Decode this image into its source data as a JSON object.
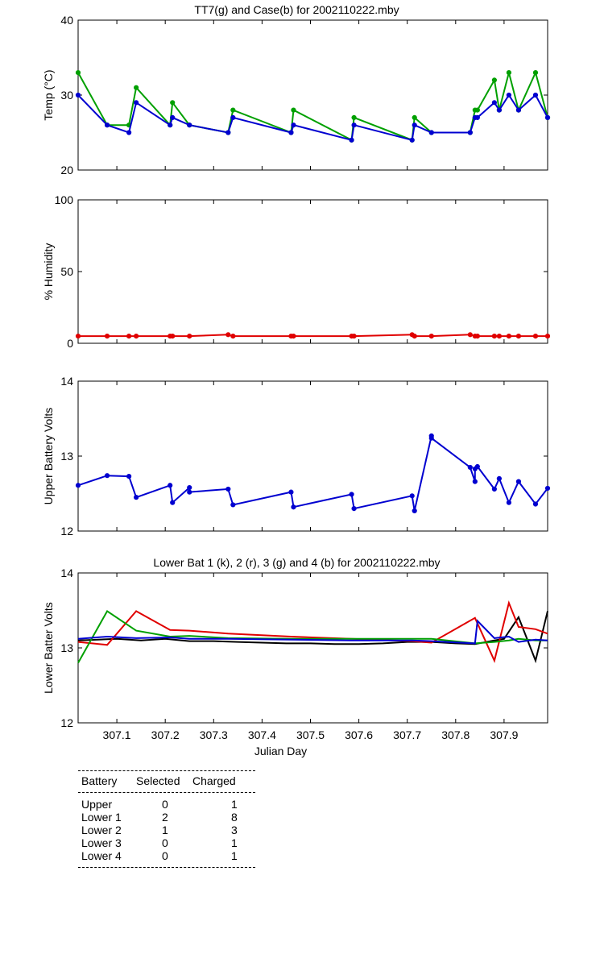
{
  "chart_data": [
    {
      "type": "line",
      "title": "TT7(g) and Case(b) for 2002110222.mby",
      "xlabel": "",
      "ylabel": "Temp  (°C)",
      "xlim": [
        307.02,
        307.99
      ],
      "ylim": [
        20,
        40
      ],
      "yticks": [
        "20",
        "30",
        "40"
      ],
      "series": [
        {
          "name": "TT7",
          "color": "#00a000",
          "marker": true,
          "x": [
            307.02,
            307.08,
            307.125,
            307.14,
            307.21,
            307.215,
            307.25,
            307.33,
            307.34,
            307.46,
            307.465,
            307.585,
            307.59,
            307.71,
            307.715,
            307.75,
            307.83,
            307.84,
            307.845,
            307.88,
            307.89,
            307.91,
            307.93,
            307.965,
            307.99
          ],
          "y": [
            33,
            26,
            26,
            31,
            26,
            29,
            26,
            25,
            28,
            25,
            28,
            24,
            27,
            24,
            27,
            25,
            25,
            28,
            28,
            32,
            28,
            33,
            28,
            33,
            27
          ]
        },
        {
          "name": "Case",
          "color": "#0000d0",
          "marker": true,
          "x": [
            307.02,
            307.08,
            307.125,
            307.14,
            307.21,
            307.215,
            307.25,
            307.33,
            307.34,
            307.46,
            307.465,
            307.585,
            307.59,
            307.71,
            307.715,
            307.75,
            307.83,
            307.84,
            307.845,
            307.88,
            307.89,
            307.91,
            307.93,
            307.965,
            307.99
          ],
          "y": [
            30,
            26,
            25,
            29,
            26,
            27,
            26,
            25,
            27,
            25,
            26,
            24,
            26,
            24,
            26,
            25,
            25,
            27,
            27,
            29,
            28,
            30,
            28,
            30,
            27
          ]
        }
      ]
    },
    {
      "type": "line",
      "title": "",
      "xlabel": "",
      "ylabel": "% Humidity",
      "xlim": [
        307.02,
        307.99
      ],
      "ylim": [
        0,
        100
      ],
      "yticks": [
        "0",
        "50",
        "100"
      ],
      "series": [
        {
          "name": "Humidity",
          "color": "#e00000",
          "marker": true,
          "x": [
            307.02,
            307.08,
            307.125,
            307.14,
            307.21,
            307.215,
            307.25,
            307.33,
            307.34,
            307.46,
            307.465,
            307.585,
            307.59,
            307.71,
            307.715,
            307.75,
            307.83,
            307.84,
            307.845,
            307.88,
            307.89,
            307.91,
            307.93,
            307.965,
            307.99
          ],
          "y": [
            5,
            5,
            5,
            5,
            5,
            5,
            5,
            6,
            5,
            5,
            5,
            5,
            5,
            6,
            5,
            5,
            6,
            5,
            5,
            5,
            5,
            5,
            5,
            5,
            5
          ]
        }
      ]
    },
    {
      "type": "line",
      "title": "",
      "xlabel": "",
      "ylabel": "Upper Battery Volts",
      "xlim": [
        307.02,
        307.99
      ],
      "ylim": [
        12,
        14
      ],
      "yticks": [
        "12",
        "13",
        "14"
      ],
      "series": [
        {
          "name": "Upper",
          "color": "#0000d0",
          "marker": true,
          "x": [
            307.02,
            307.08,
            307.125,
            307.14,
            307.21,
            307.215,
            307.25,
            307.25,
            307.33,
            307.34,
            307.46,
            307.465,
            307.585,
            307.59,
            307.71,
            307.715,
            307.75,
            307.75,
            307.83,
            307.84,
            307.84,
            307.845,
            307.88,
            307.89,
            307.91,
            307.93,
            307.965,
            307.99
          ],
          "y": [
            12.61,
            12.74,
            12.73,
            12.45,
            12.61,
            12.38,
            12.58,
            12.52,
            12.56,
            12.35,
            12.52,
            12.32,
            12.49,
            12.3,
            12.47,
            12.27,
            13.27,
            13.24,
            12.85,
            12.66,
            12.83,
            12.86,
            12.56,
            12.7,
            12.38,
            12.66,
            12.36,
            12.57
          ]
        }
      ]
    },
    {
      "type": "line",
      "title": "Lower Bat 1 (k), 2 (r), 3 (g) and 4 (b) for 2002110222.mby",
      "xlabel": "Julian Day",
      "ylabel": "Lower Batter Volts",
      "xlim": [
        307.02,
        307.99
      ],
      "ylim": [
        12,
        14
      ],
      "yticks": [
        "12",
        "13",
        "14"
      ],
      "xticks": [
        "307.1",
        "307.2",
        "307.3",
        "307.4",
        "307.5",
        "307.6",
        "307.7",
        "307.8",
        "307.9"
      ],
      "series": [
        {
          "name": "Lower 1",
          "color": "#000000",
          "marker": false,
          "x": [
            307.02,
            307.1,
            307.15,
            307.2,
            307.25,
            307.3,
            307.35,
            307.4,
            307.45,
            307.5,
            307.55,
            307.6,
            307.65,
            307.7,
            307.75,
            307.8,
            307.84,
            307.88,
            307.9,
            307.93,
            307.965,
            307.99
          ],
          "y": [
            13.1,
            13.12,
            13.1,
            13.12,
            13.09,
            13.09,
            13.08,
            13.07,
            13.06,
            13.06,
            13.05,
            13.05,
            13.06,
            13.08,
            13.08,
            13.06,
            13.05,
            13.1,
            13.12,
            13.41,
            12.83,
            13.49
          ]
        },
        {
          "name": "Lower 2",
          "color": "#e00000",
          "marker": false,
          "x": [
            307.02,
            307.08,
            307.14,
            307.21,
            307.25,
            307.33,
            307.46,
            307.585,
            307.71,
            307.75,
            307.84,
            307.88,
            307.91,
            307.93,
            307.965,
            307.99
          ],
          "y": [
            13.08,
            13.04,
            13.49,
            13.24,
            13.23,
            13.19,
            13.15,
            13.12,
            13.09,
            13.07,
            13.4,
            12.83,
            13.6,
            13.28,
            13.25,
            13.19
          ]
        },
        {
          "name": "Lower 3",
          "color": "#00a000",
          "marker": false,
          "x": [
            307.02,
            307.08,
            307.14,
            307.21,
            307.25,
            307.33,
            307.46,
            307.585,
            307.71,
            307.75,
            307.84,
            307.88,
            307.91,
            307.93,
            307.965,
            307.99
          ],
          "y": [
            12.8,
            13.49,
            13.23,
            13.15,
            13.16,
            13.13,
            13.12,
            13.12,
            13.12,
            13.12,
            13.06,
            13.08,
            13.1,
            13.12,
            13.1,
            13.1
          ]
        },
        {
          "name": "Lower 4",
          "color": "#0000d0",
          "marker": false,
          "x": [
            307.02,
            307.08,
            307.14,
            307.21,
            307.25,
            307.33,
            307.46,
            307.585,
            307.71,
            307.75,
            307.84,
            307.845,
            307.88,
            307.91,
            307.93,
            307.965,
            307.99
          ],
          "y": [
            13.12,
            13.15,
            13.13,
            13.14,
            13.12,
            13.12,
            13.11,
            13.1,
            13.1,
            13.09,
            13.06,
            13.36,
            13.13,
            13.15,
            13.08,
            13.11,
            13.1
          ]
        }
      ]
    }
  ],
  "table": {
    "headers": [
      "Battery",
      "Selected",
      "Charged"
    ],
    "rows": [
      {
        "battery": "Upper",
        "selected": "0",
        "charged": "1"
      },
      {
        "battery": "Lower 1",
        "selected": "2",
        "charged": "8"
      },
      {
        "battery": "Lower 2",
        "selected": "1",
        "charged": "3"
      },
      {
        "battery": "Lower 3",
        "selected": "0",
        "charged": "1"
      },
      {
        "battery": "Lower 4",
        "selected": "0",
        "charged": "1"
      }
    ]
  }
}
